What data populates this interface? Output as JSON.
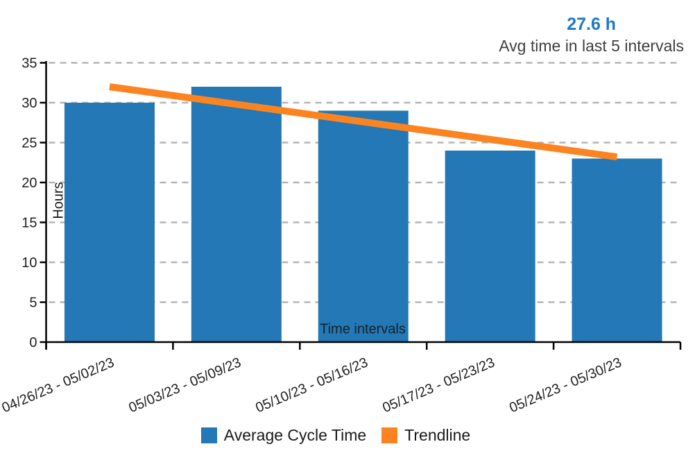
{
  "header": {
    "avg_value": "27.6 h",
    "avg_caption": "Avg time in last 5 intervals"
  },
  "chart_data": {
    "type": "bar",
    "title": "",
    "categories": [
      "04/26/23 - 05/02/23",
      "05/03/23 - 05/09/23",
      "05/10/23 - 05/16/23",
      "05/17/23 - 05/23/23",
      "05/24/23 - 05/30/23"
    ],
    "series": [
      {
        "name": "Average Cycle Time",
        "type": "bar",
        "color": "#2378B5",
        "values": [
          30,
          32,
          29,
          24,
          23
        ]
      },
      {
        "name": "Trendline",
        "type": "line",
        "color": "#FB8420",
        "values": [
          32,
          29.8,
          27.6,
          25.4,
          23.2
        ]
      }
    ],
    "xlabel": "Time intervals",
    "ylabel": "Hours",
    "ylim": [
      0,
      35
    ],
    "ytick_step": 5,
    "yticks": [
      0,
      5,
      10,
      15,
      20,
      25,
      30,
      35
    ],
    "grid": "horizontal-dashed",
    "legend_position": "bottom",
    "annotation": {
      "value": "27.6 h",
      "caption": "Avg time in last 5 intervals"
    }
  },
  "legend": {
    "items": [
      {
        "label": "Average Cycle Time",
        "color": "#2378B5"
      },
      {
        "label": "Trendline",
        "color": "#FB8420"
      }
    ]
  },
  "colors": {
    "bar": "#2378B5",
    "trendline": "#FB8420",
    "avg_value_text": "#1B7BC4",
    "caption_text": "#3F3F3F",
    "axis": "#000000",
    "gridline": "#B5B5B5",
    "tick_text": "#1E1E1E"
  }
}
